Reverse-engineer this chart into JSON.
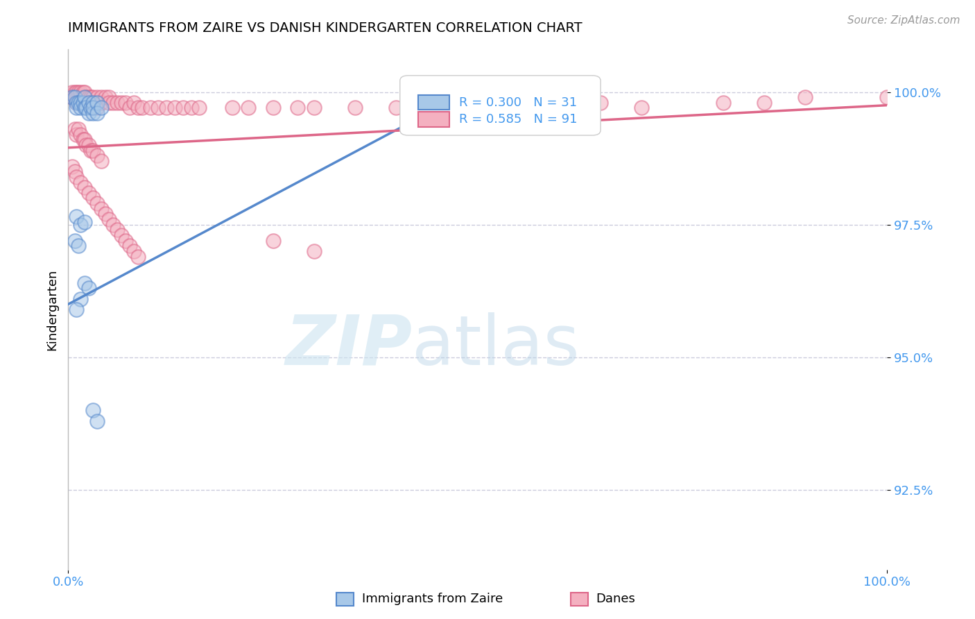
{
  "title": "IMMIGRANTS FROM ZAIRE VS DANISH KINDERGARTEN CORRELATION CHART",
  "source_text": "Source: ZipAtlas.com",
  "ylabel": "Kindergarten",
  "xmin": 0.0,
  "xmax": 1.0,
  "ymin": 0.91,
  "ymax": 1.008,
  "yticks": [
    0.925,
    0.95,
    0.975,
    1.0
  ],
  "ytick_labels": [
    "92.5%",
    "95.0%",
    "97.5%",
    "100.0%"
  ],
  "blue_color": "#a8c8e8",
  "pink_color": "#f4b0c0",
  "blue_line_color": "#5588cc",
  "pink_line_color": "#dd6688",
  "blue_trend_x": [
    0.0,
    0.5
  ],
  "blue_trend_y": [
    0.96,
    1.001
  ],
  "pink_trend_x": [
    0.0,
    1.0
  ],
  "pink_trend_y": [
    0.9895,
    0.9975
  ],
  "blue_x": [
    0.005,
    0.008,
    0.01,
    0.01,
    0.012,
    0.015,
    0.015,
    0.018,
    0.02,
    0.02,
    0.022,
    0.025,
    0.025,
    0.028,
    0.03,
    0.03,
    0.03,
    0.035,
    0.035,
    0.04,
    0.01,
    0.015,
    0.02,
    0.008,
    0.012,
    0.02,
    0.025,
    0.015,
    0.01,
    0.03,
    0.035
  ],
  "blue_y": [
    0.999,
    0.999,
    0.998,
    0.997,
    0.998,
    0.998,
    0.997,
    0.998,
    0.999,
    0.997,
    0.997,
    0.998,
    0.996,
    0.997,
    0.998,
    0.996,
    0.997,
    0.998,
    0.996,
    0.997,
    0.9765,
    0.975,
    0.9755,
    0.972,
    0.971,
    0.964,
    0.963,
    0.961,
    0.959,
    0.94,
    0.938
  ],
  "pink_x": [
    0.005,
    0.005,
    0.008,
    0.008,
    0.01,
    0.01,
    0.01,
    0.012,
    0.012,
    0.015,
    0.015,
    0.018,
    0.018,
    0.02,
    0.02,
    0.02,
    0.022,
    0.025,
    0.025,
    0.028,
    0.028,
    0.03,
    0.03,
    0.035,
    0.035,
    0.04,
    0.04,
    0.045,
    0.05,
    0.05,
    0.055,
    0.06,
    0.065,
    0.07,
    0.075,
    0.08,
    0.085,
    0.09,
    0.1,
    0.11,
    0.12,
    0.13,
    0.14,
    0.15,
    0.16,
    0.2,
    0.22,
    0.25,
    0.28,
    0.3,
    0.35,
    0.4,
    0.55,
    0.6,
    0.65,
    0.7,
    0.8,
    0.85,
    0.9,
    1.0,
    0.008,
    0.01,
    0.012,
    0.015,
    0.018,
    0.02,
    0.022,
    0.025,
    0.028,
    0.03,
    0.035,
    0.04,
    0.005,
    0.008,
    0.01,
    0.015,
    0.02,
    0.025,
    0.03,
    0.035,
    0.04,
    0.045,
    0.05,
    0.055,
    0.06,
    0.065,
    0.07,
    0.075,
    0.08,
    0.085,
    0.25,
    0.3
  ],
  "pink_y": [
    1.0,
    0.999,
    1.0,
    0.999,
    1.0,
    0.999,
    0.998,
    1.0,
    0.999,
    1.0,
    0.999,
    1.0,
    0.998,
    0.999,
    0.998,
    1.0,
    0.999,
    0.999,
    0.998,
    0.999,
    0.998,
    0.999,
    0.998,
    0.999,
    0.997,
    0.999,
    0.998,
    0.999,
    0.999,
    0.998,
    0.998,
    0.998,
    0.998,
    0.998,
    0.997,
    0.998,
    0.997,
    0.997,
    0.997,
    0.997,
    0.997,
    0.997,
    0.997,
    0.997,
    0.997,
    0.997,
    0.997,
    0.997,
    0.997,
    0.997,
    0.997,
    0.997,
    0.997,
    0.998,
    0.998,
    0.997,
    0.998,
    0.998,
    0.999,
    0.999,
    0.993,
    0.992,
    0.993,
    0.992,
    0.991,
    0.991,
    0.99,
    0.99,
    0.989,
    0.989,
    0.988,
    0.987,
    0.986,
    0.985,
    0.984,
    0.983,
    0.982,
    0.981,
    0.98,
    0.979,
    0.978,
    0.977,
    0.976,
    0.975,
    0.974,
    0.973,
    0.972,
    0.971,
    0.97,
    0.969,
    0.972,
    0.97
  ]
}
